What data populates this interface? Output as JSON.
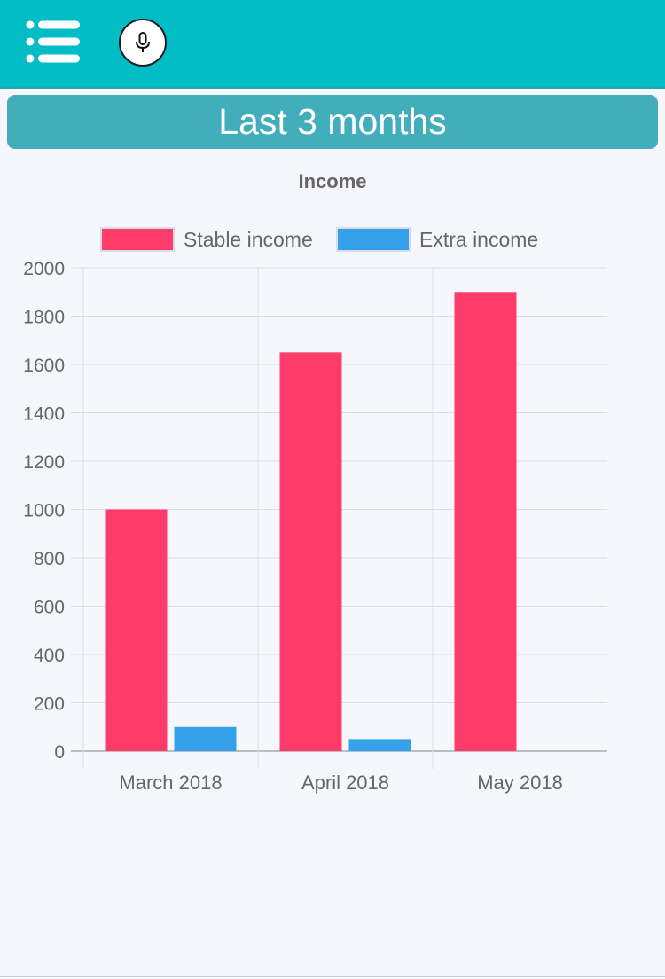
{
  "header": {
    "menu_icon": "menu-list-icon",
    "mic_icon": "microphone-icon",
    "accent_color": "#03bdc6"
  },
  "banner": {
    "title": "Last 3 months",
    "color": "#42adbb"
  },
  "chart_data": {
    "type": "bar",
    "title": "Income",
    "categories": [
      "March 2018",
      "April 2018",
      "May 2018"
    ],
    "series": [
      {
        "name": "Stable income",
        "color": "#ff3b6a",
        "values": [
          1000,
          1650,
          1900
        ]
      },
      {
        "name": "Extra income",
        "color": "#36a1eb",
        "values": [
          100,
          50,
          0
        ]
      }
    ],
    "yticks": [
      0,
      200,
      400,
      600,
      800,
      1000,
      1200,
      1400,
      1600,
      1800,
      2000
    ],
    "ylim": [
      0,
      2000
    ],
    "xlabel": "",
    "ylabel": "",
    "grid": true,
    "legend": "top"
  }
}
